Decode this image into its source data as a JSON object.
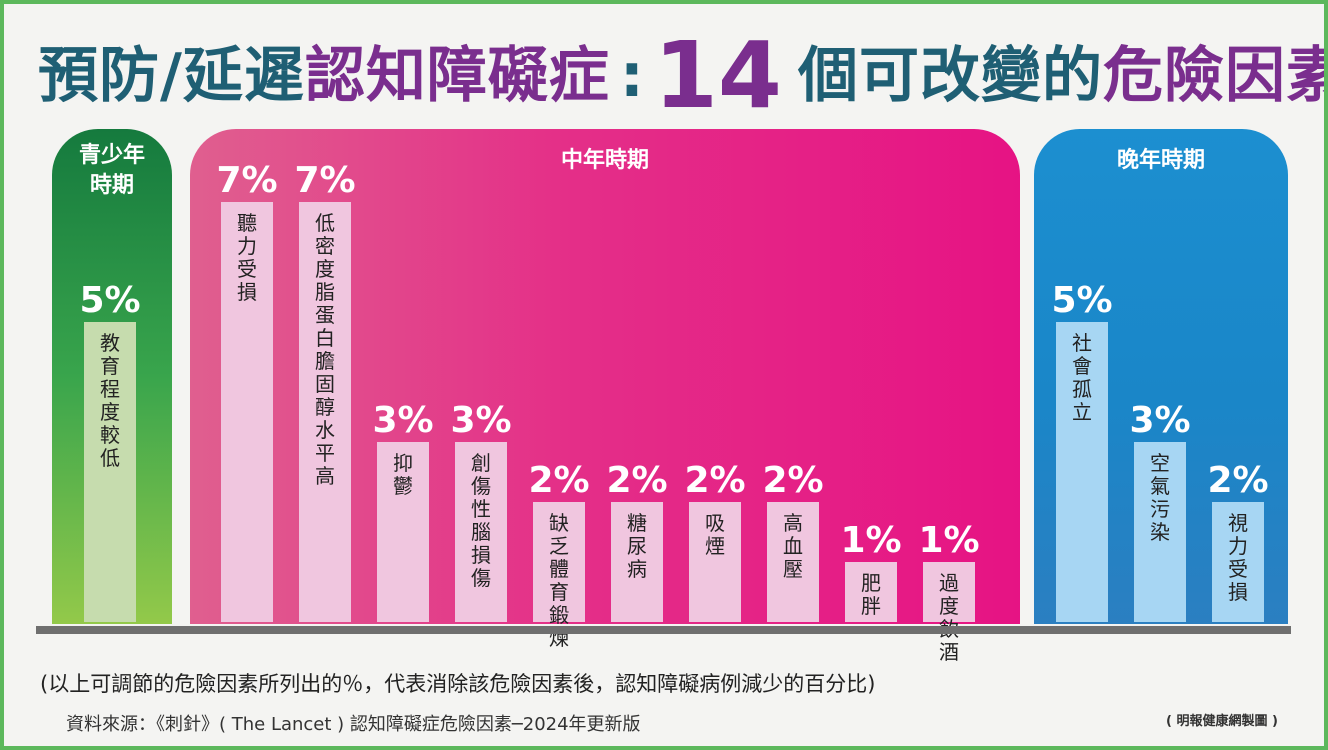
{
  "title": {
    "part1": "預防/延遲",
    "part2": "認知障礙症",
    "colon": ":",
    "number": "14",
    "part3": "個可改變的",
    "part4": "危險因素"
  },
  "periods": {
    "youth": "青少年時期",
    "mid": "中年時期",
    "late": "晚年時期"
  },
  "colors": {
    "title_teal": "#1f5f74",
    "title_purple": "#7a2e8e",
    "youth_bar": "#c6dcae",
    "mid_bar": "#f0c6df",
    "late_bar": "#a7d6f3",
    "value_label": "#ffffff"
  },
  "chart_data": {
    "type": "bar",
    "unit": "%",
    "ylim": [
      0,
      7
    ],
    "groups": [
      {
        "period": "青少年時期",
        "categories": [
          "教育程度較低"
        ],
        "values": [
          5
        ]
      },
      {
        "period": "中年時期",
        "categories": [
          "聽力受損",
          "低密度脂蛋白膽固醇水平高",
          "抑鬱",
          "創傷性腦損傷",
          "缺乏體育鍛煉",
          "糖尿病",
          "吸煙",
          "高血壓",
          "肥胖",
          "過度飲酒"
        ],
        "values": [
          7,
          7,
          3,
          3,
          2,
          2,
          2,
          2,
          1,
          1
        ]
      },
      {
        "period": "晚年時期",
        "categories": [
          "社會孤立",
          "空氣污染",
          "視力受損"
        ],
        "values": [
          5,
          3,
          2
        ]
      }
    ]
  },
  "footer": {
    "note": "(以上可調節的危險因素所列出的％，代表消除該危險因素後，認知障礙病例減少的百分比)",
    "source": "資料來源：《刺針》( The Lancet ) 認知障礙症危險因素─2024年更新版",
    "credit": "( 明報健康網製圖 )"
  }
}
